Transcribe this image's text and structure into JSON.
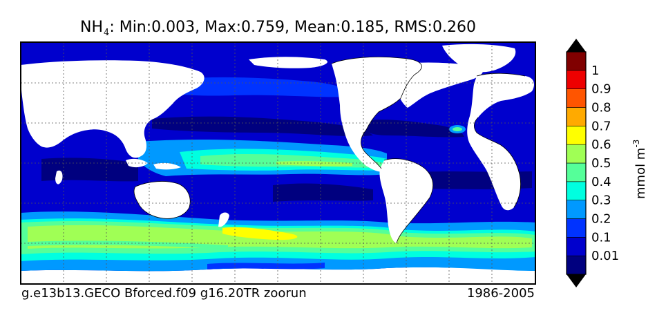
{
  "title": {
    "species": "NH",
    "subscript": "4",
    "stats_text": ": Min:0.003, Max:0.759, Mean:0.185, RMS:0.260"
  },
  "footer": {
    "run": "g.e13b13.GECO Bforced.f09 g16.20TR zoorun",
    "period": "1986-2005"
  },
  "colorbar": {
    "unit_label": "mmol m",
    "unit_superscript": "-3",
    "tick_labels": [
      "0.01",
      "0.1",
      "0.2",
      "0.3",
      "0.4",
      "0.5",
      "0.6",
      "0.7",
      "0.8",
      "0.9",
      "1"
    ],
    "colors": [
      "#00007f",
      "#0000cd",
      "#0033ff",
      "#0099ff",
      "#00ffe0",
      "#55ff99",
      "#a0ff55",
      "#ffff00",
      "#ffaa00",
      "#ff5500",
      "#ee0000",
      "#800000"
    ],
    "under_color": "#000000",
    "over_color": "#000000"
  }
}
